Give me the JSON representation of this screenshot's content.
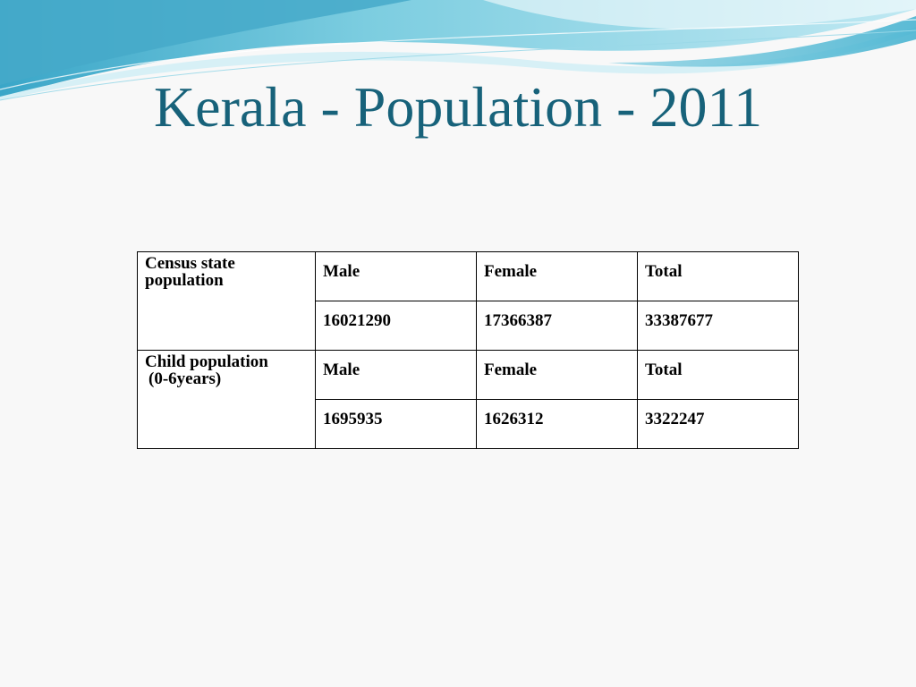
{
  "slide": {
    "title": "Kerala - Population - 2011"
  },
  "table": {
    "groups": [
      {
        "row_label_line1": "Census state",
        "row_label_line2": "population",
        "headers": [
          "Male",
          "Female",
          "Total"
        ],
        "values": [
          "16021290",
          "17366387",
          "33387677"
        ]
      },
      {
        "row_label_line1": "Child population",
        "row_label_line2": "(0-6years)",
        "headers": [
          "Male",
          "Female",
          "Total"
        ],
        "values": [
          "1695935",
          "1626312",
          "3322247"
        ]
      }
    ]
  },
  "colors": {
    "title": "#17627a",
    "wave_dark": "#4fb3cf",
    "wave_light": "#bfe6f0",
    "background": "#f8f8f8"
  }
}
